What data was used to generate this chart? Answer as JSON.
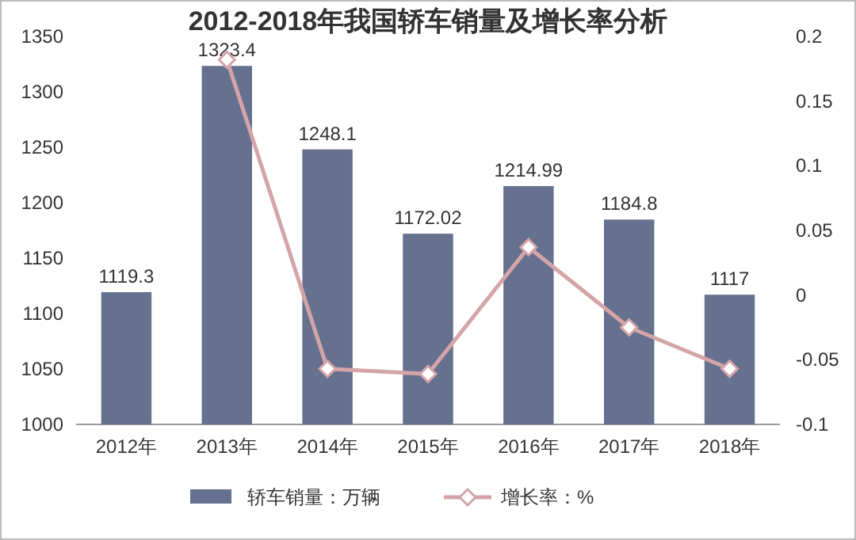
{
  "chart_data": {
    "type": "bar",
    "title": "2012-2018年我国轿车销量及增长率分析",
    "categories": [
      "2012年",
      "2013年",
      "2014年",
      "2015年",
      "2016年",
      "2017年",
      "2018年"
    ],
    "series": [
      {
        "name": "轿车销量：万辆",
        "color": "#66708f",
        "values": [
          1119.3,
          1323.4,
          1248.1,
          1172.02,
          1214.99,
          1184.8,
          1117
        ],
        "value_labels": [
          "1119.3",
          "1323.4",
          "1248.1",
          "1172.02",
          "1214.99",
          "1184.8",
          "1117"
        ]
      },
      {
        "name": "增长率：%",
        "type": "line",
        "axis": "y2",
        "color": "#d4a5a8",
        "marker": "diamond",
        "values": [
          null,
          0.182,
          -0.057,
          -0.061,
          0.037,
          -0.025,
          -0.057
        ]
      }
    ],
    "ylim": [
      1000,
      1350
    ],
    "yticks": [
      1000,
      1050,
      1100,
      1150,
      1200,
      1250,
      1300,
      1350
    ],
    "y2lim": [
      -0.1,
      0.2
    ],
    "y2ticks": [
      -0.1,
      -0.05,
      0,
      0.05,
      0.1,
      0.15,
      0.2
    ],
    "legend": "bottom"
  }
}
